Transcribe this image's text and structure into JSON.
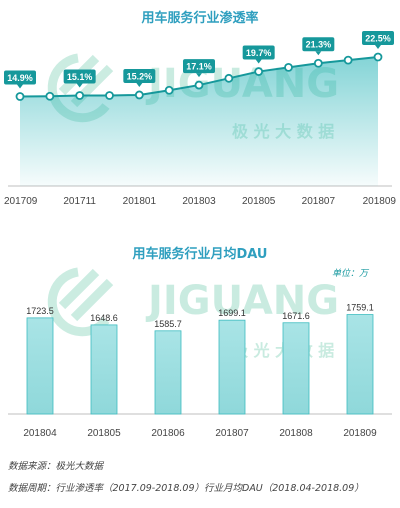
{
  "colors": {
    "accent": "#1fb1b5",
    "accent_dark": "#16989b",
    "title": "#2f9fbf",
    "bar_fill": "#a9e4e6",
    "watermark": "#cbece1"
  },
  "watermark": {
    "brand": "JIGUANG",
    "cn": "极 光 大 数 据"
  },
  "chart_data": [
    {
      "type": "line",
      "title": "用车服务行业渗透率",
      "x": [
        "201709",
        "201710",
        "201711",
        "201712",
        "201801",
        "201802",
        "201803",
        "201804",
        "201805",
        "201806",
        "201807",
        "201808",
        "201809"
      ],
      "x_tick_labels": [
        "201709",
        "201711",
        "201801",
        "201803",
        "201805",
        "201807",
        "201809"
      ],
      "values": [
        14.9,
        14.95,
        15.1,
        15.1,
        15.2,
        16.1,
        17.1,
        18.4,
        19.7,
        20.5,
        21.3,
        21.9,
        22.5
      ],
      "labels": [
        {
          "index": 0,
          "text": "14.9%"
        },
        {
          "index": 2,
          "text": "15.1%"
        },
        {
          "index": 4,
          "text": "15.2%"
        },
        {
          "index": 6,
          "text": "17.1%"
        },
        {
          "index": 8,
          "text": "19.7%"
        },
        {
          "index": 10,
          "text": "21.3%"
        },
        {
          "index": 12,
          "text": "22.5%"
        }
      ],
      "area": true,
      "ylim": [
        0,
        25
      ]
    },
    {
      "type": "bar",
      "title": "用车服务行业月均DAU",
      "unit": "单位：万",
      "categories": [
        "201804",
        "201805",
        "201806",
        "201807",
        "201808",
        "201809"
      ],
      "values": [
        1723.5,
        1648.6,
        1585.7,
        1699.1,
        1671.6,
        1759.1
      ],
      "value_labels": [
        "1723.5",
        "1648.6",
        "1585.7",
        "1699.1",
        "1671.6",
        "1759.1"
      ],
      "ylim": [
        0,
        1850
      ]
    }
  ],
  "footer": {
    "source": "数据来源：极光大数据",
    "period": "数据周期：行业渗透率（2017.09-2018.09）行业月均DAU（2018.04-2018.09）"
  }
}
